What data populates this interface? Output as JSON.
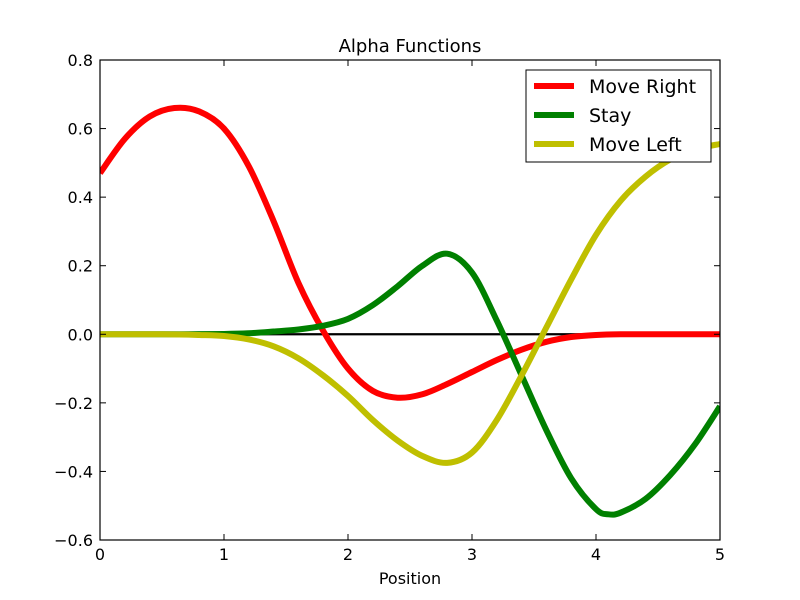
{
  "chart_data": {
    "type": "line",
    "title": "Alpha Functions",
    "xlabel": "Position",
    "ylabel": "",
    "xlim": [
      0,
      5
    ],
    "ylim": [
      -0.6,
      0.8
    ],
    "xticks": [
      "0",
      "1",
      "2",
      "3",
      "4",
      "5"
    ],
    "yticks": [
      "−0.6",
      "−0.4",
      "−0.2",
      "0.0",
      "0.2",
      "0.4",
      "0.6",
      "0.8"
    ],
    "grid": false,
    "legend_position": "top-right",
    "zero_line": {
      "y": 0,
      "color": "#000000"
    },
    "series": [
      {
        "name": "Move Right",
        "color": "#ff0000",
        "points": [
          [
            0,
            0.47
          ],
          [
            0.2,
            0.57
          ],
          [
            0.4,
            0.635
          ],
          [
            0.6,
            0.66
          ],
          [
            0.8,
            0.65
          ],
          [
            1.0,
            0.6
          ],
          [
            1.2,
            0.49
          ],
          [
            1.4,
            0.33
          ],
          [
            1.6,
            0.15
          ],
          [
            1.8,
            0.01
          ],
          [
            2.0,
            -0.1
          ],
          [
            2.2,
            -0.165
          ],
          [
            2.4,
            -0.185
          ],
          [
            2.6,
            -0.175
          ],
          [
            2.8,
            -0.145
          ],
          [
            3.0,
            -0.11
          ],
          [
            3.2,
            -0.075
          ],
          [
            3.4,
            -0.045
          ],
          [
            3.6,
            -0.022
          ],
          [
            3.8,
            -0.008
          ],
          [
            4.0,
            -0.002
          ],
          [
            4.2,
            0.0
          ],
          [
            4.5,
            0.0
          ],
          [
            5.0,
            0.0
          ]
        ]
      },
      {
        "name": "Stay",
        "color": "#008000",
        "points": [
          [
            0,
            0.0
          ],
          [
            0.5,
            0.0
          ],
          [
            1.0,
            0.001
          ],
          [
            1.2,
            0.003
          ],
          [
            1.4,
            0.008
          ],
          [
            1.6,
            0.014
          ],
          [
            1.8,
            0.025
          ],
          [
            2.0,
            0.045
          ],
          [
            2.2,
            0.085
          ],
          [
            2.4,
            0.14
          ],
          [
            2.6,
            0.2
          ],
          [
            2.8,
            0.235
          ],
          [
            3.0,
            0.18
          ],
          [
            3.2,
            0.04
          ],
          [
            3.4,
            -0.12
          ],
          [
            3.6,
            -0.28
          ],
          [
            3.8,
            -0.42
          ],
          [
            4.0,
            -0.51
          ],
          [
            4.1,
            -0.525
          ],
          [
            4.2,
            -0.52
          ],
          [
            4.4,
            -0.48
          ],
          [
            4.6,
            -0.41
          ],
          [
            4.8,
            -0.32
          ],
          [
            5.0,
            -0.21
          ]
        ]
      },
      {
        "name": "Move Left",
        "color": "#bfbf00",
        "points": [
          [
            0,
            0.0
          ],
          [
            0.5,
            0.0
          ],
          [
            0.8,
            -0.002
          ],
          [
            1.0,
            -0.005
          ],
          [
            1.2,
            -0.015
          ],
          [
            1.4,
            -0.035
          ],
          [
            1.6,
            -0.07
          ],
          [
            1.8,
            -0.12
          ],
          [
            2.0,
            -0.18
          ],
          [
            2.2,
            -0.25
          ],
          [
            2.4,
            -0.31
          ],
          [
            2.6,
            -0.355
          ],
          [
            2.8,
            -0.375
          ],
          [
            3.0,
            -0.345
          ],
          [
            3.2,
            -0.25
          ],
          [
            3.4,
            -0.12
          ],
          [
            3.6,
            0.02
          ],
          [
            3.8,
            0.16
          ],
          [
            4.0,
            0.29
          ],
          [
            4.2,
            0.39
          ],
          [
            4.4,
            0.46
          ],
          [
            4.6,
            0.51
          ],
          [
            4.8,
            0.54
          ],
          [
            5.0,
            0.555
          ]
        ]
      }
    ]
  }
}
